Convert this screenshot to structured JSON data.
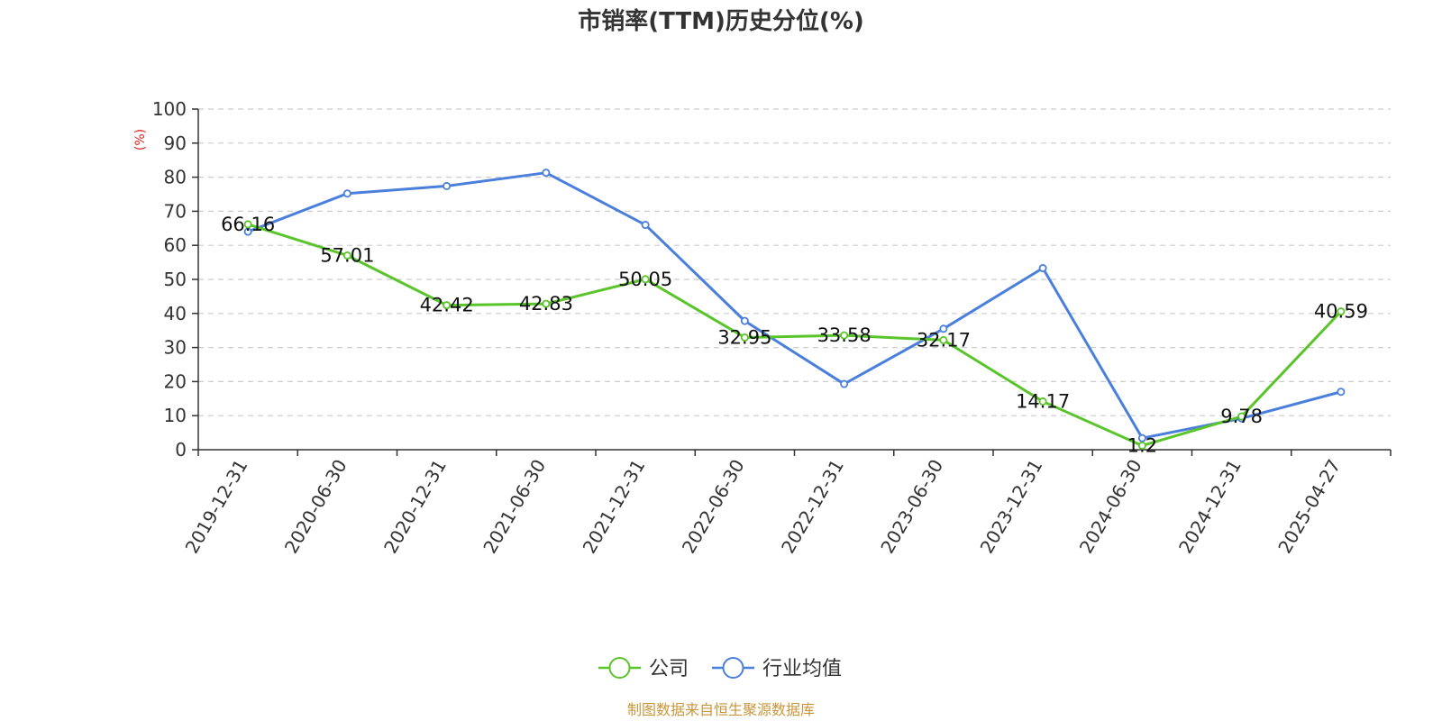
{
  "chart_data": {
    "type": "line",
    "title": "市销率(TTM)历史分位(%)",
    "ylabel": "(%)",
    "xlabel": "",
    "ylim": [
      0,
      100
    ],
    "yticks": [
      0,
      10,
      20,
      30,
      40,
      50,
      60,
      70,
      80,
      90,
      100
    ],
    "grid": true,
    "legend_position": "bottom-center",
    "categories": [
      "2019-12-31",
      "2020-06-30",
      "2020-12-31",
      "2021-06-30",
      "2021-12-31",
      "2022-06-30",
      "2022-12-31",
      "2023-06-30",
      "2023-12-31",
      "2024-06-30",
      "2024-12-31",
      "2025-04-27"
    ],
    "series": [
      {
        "name": "公司",
        "color": "#5ac52a",
        "values": [
          66.16,
          57.01,
          42.42,
          42.83,
          50.05,
          32.95,
          33.58,
          32.17,
          14.17,
          1.2,
          9.78,
          40.59
        ],
        "labels": [
          "66.16",
          "57.01",
          "42.42",
          "42.83",
          "50.05",
          "32.95",
          "33.58",
          "32.17",
          "14.17",
          "1.2",
          "9.78",
          "40.59"
        ]
      },
      {
        "name": "行业均值",
        "color": "#4a7fdc",
        "values": [
          64,
          75.2,
          77.4,
          81.3,
          66,
          37.8,
          19.3,
          35.5,
          53.3,
          3.4,
          9.2,
          17
        ]
      }
    ],
    "ylabel_color": "#e02020",
    "source": "制图数据来自恒生聚源数据库",
    "source_color": "#c8963c"
  }
}
